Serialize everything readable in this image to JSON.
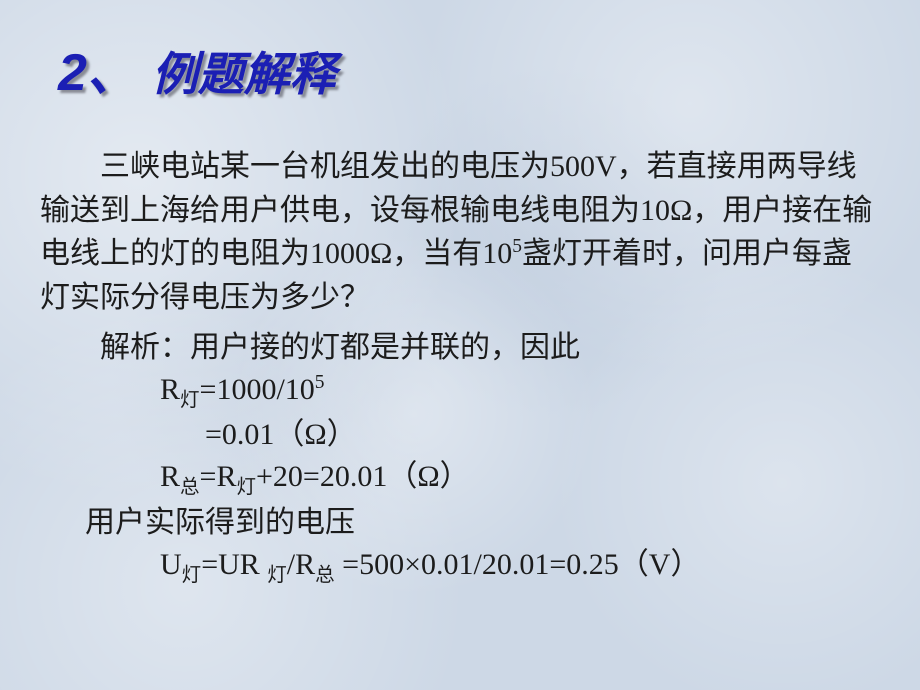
{
  "title": {
    "number": "2、",
    "text": " 例题解释"
  },
  "problem": {
    "line1_a": "三峡电站某一台机组发出的电压为",
    "line1_v": "500V",
    "line1_b": "，若直接用",
    "line2_a": "两导线输送到上海给用户供电，设每根输电线电阻为",
    "line3_a": "",
    "line3_r1": "10Ω",
    "line3_b": "，用户接在输电线上的灯的电阻为",
    "line3_r2": "1000Ω",
    "line3_c": "，当有",
    "line3_n_base": "10",
    "line3_n_exp": "5",
    "line4": "盏灯开着时，问用户每盏灯实际分得电压为多少？"
  },
  "solution": {
    "intro": "解析：用户接的灯都是并联的，因此",
    "r_lamp_label_a": "R",
    "r_lamp_sub": "灯",
    "r_lamp_expr": "=1000/10",
    "r_lamp_exp": "5",
    "r_lamp_val_a": "=0.01（",
    "r_lamp_val_unit": "Ω",
    "r_lamp_val_b": "）",
    "r_total_a": "R",
    "r_total_sub1": "总",
    "r_total_b": "=R",
    "r_total_sub2": "灯",
    "r_total_c": "+20=20.01（",
    "r_total_unit": "Ω",
    "r_total_d": "）",
    "u_intro": "用户实际得到的电压",
    "u_a": "U",
    "u_sub1": "灯",
    "u_b": "=UR ",
    "u_sub2": "灯",
    "u_c": "/R",
    "u_sub3": "总",
    "u_d": " =500×0.01/20.01=0.25（",
    "u_unit": "V",
    "u_e": "）"
  },
  "colors": {
    "title_color": "#1b1fb4",
    "text_color": "#1c1c1c",
    "bg_base": "#cdd8e6"
  },
  "fonts": {
    "title_num_size": 52,
    "title_rest_size": 46,
    "body_size": 30
  }
}
